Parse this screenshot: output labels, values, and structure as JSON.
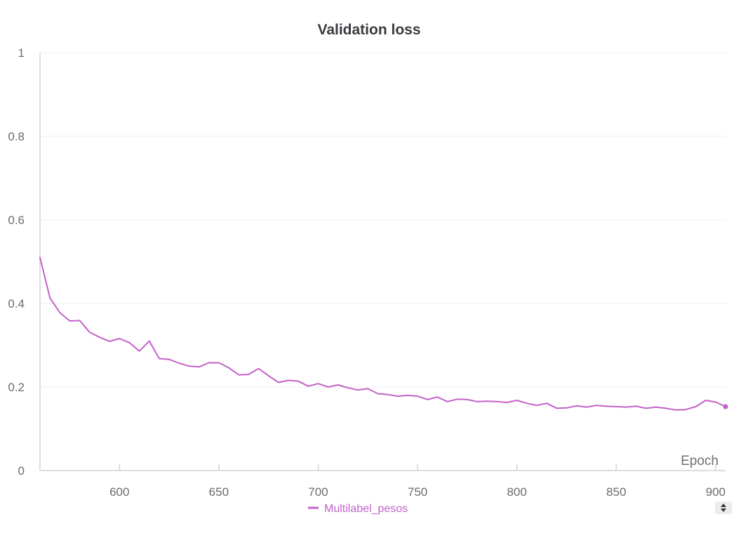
{
  "chart_data": {
    "type": "line",
    "title": "Validation loss",
    "xlabel": "Epoch",
    "ylabel": "",
    "xlim": [
      560,
      905
    ],
    "ylim": [
      0,
      1
    ],
    "x_ticks": [
      600,
      650,
      700,
      750,
      800,
      850,
      900
    ],
    "y_ticks": [
      0,
      0.2,
      0.4,
      0.6,
      0.8,
      1
    ],
    "y_tick_labels": [
      "0",
      "0.2",
      "0.4",
      "0.6",
      "0.8",
      "1"
    ],
    "grid": true,
    "legend_position": "bottom",
    "series": [
      {
        "name": "Multilabel_pesos",
        "color": "#c262c9",
        "x": [
          560,
          565,
          570,
          575,
          580,
          585,
          590,
          595,
          600,
          605,
          610,
          615,
          620,
          625,
          630,
          635,
          640,
          645,
          650,
          655,
          660,
          665,
          670,
          675,
          680,
          685,
          690,
          695,
          700,
          705,
          710,
          715,
          720,
          725,
          730,
          735,
          740,
          745,
          750,
          755,
          760,
          765,
          770,
          775,
          780,
          785,
          790,
          795,
          800,
          805,
          810,
          815,
          820,
          825,
          830,
          835,
          840,
          845,
          850,
          855,
          860,
          865,
          870,
          875,
          880,
          885,
          890,
          895,
          900,
          905
        ],
        "y": [
          0.51,
          0.413,
          0.378,
          0.358,
          0.359,
          0.331,
          0.319,
          0.309,
          0.316,
          0.306,
          0.286,
          0.31,
          0.268,
          0.266,
          0.257,
          0.25,
          0.248,
          0.258,
          0.258,
          0.246,
          0.229,
          0.23,
          0.244,
          0.227,
          0.211,
          0.216,
          0.214,
          0.202,
          0.208,
          0.2,
          0.205,
          0.198,
          0.193,
          0.196,
          0.184,
          0.182,
          0.178,
          0.18,
          0.178,
          0.17,
          0.176,
          0.165,
          0.171,
          0.17,
          0.165,
          0.166,
          0.165,
          0.163,
          0.168,
          0.161,
          0.156,
          0.161,
          0.149,
          0.15,
          0.155,
          0.152,
          0.156,
          0.154,
          0.153,
          0.152,
          0.154,
          0.149,
          0.152,
          0.149,
          0.145,
          0.146,
          0.153,
          0.168,
          0.164,
          0.153
        ]
      }
    ]
  },
  "legend": {
    "scroll_icon": "up-down-arrows-icon"
  }
}
